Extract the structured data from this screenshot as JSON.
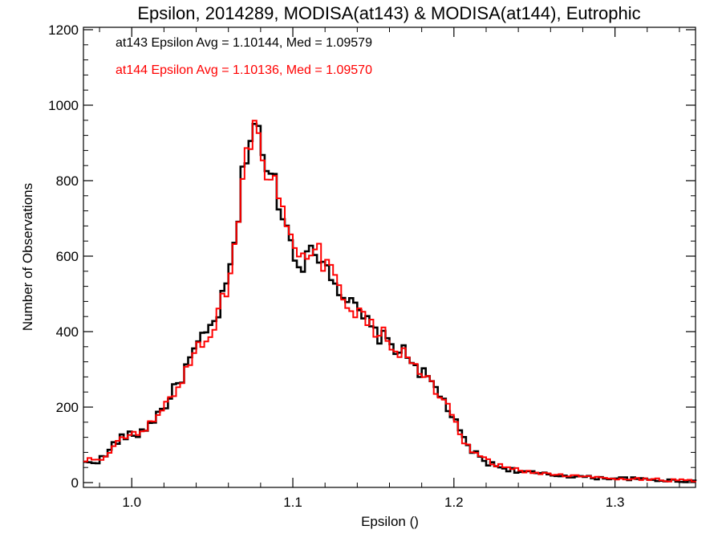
{
  "chart_data": {
    "type": "line",
    "title": "Epsilon, 2014289, MODISA(at143) & MODISA(at144), Eutrophic",
    "xlabel": "Epsilon ()",
    "ylabel": "Number of Observations",
    "xlim": [
      0.97,
      1.35
    ],
    "ylim": [
      0,
      1200
    ],
    "x_ticks": [
      1.0,
      1.1,
      1.2,
      1.3
    ],
    "x_tick_labels": [
      "1.0",
      "1.1",
      "1.2",
      "1.3"
    ],
    "y_ticks": [
      0,
      200,
      400,
      600,
      800,
      1000,
      1200
    ],
    "y_tick_labels": [
      "0",
      "200",
      "400",
      "600",
      "800",
      "1000",
      "1200"
    ],
    "grid": false,
    "step": true,
    "annotations": [
      {
        "text": "at143 Epsilon Avg = 1.10144, Med = 1.09579",
        "color": "#000000"
      },
      {
        "text": "at144 Epsilon Avg = 1.10136, Med = 1.09570",
        "color": "#ff0000"
      }
    ],
    "series": [
      {
        "color": "#000000",
        "x": [
          0.97,
          0.975,
          0.98,
          0.985,
          0.99,
          0.995,
          1.0,
          1.005,
          1.01,
          1.015,
          1.02,
          1.025,
          1.03,
          1.035,
          1.04,
          1.045,
          1.05,
          1.055,
          1.06,
          1.065,
          1.07,
          1.0725,
          1.075,
          1.0775,
          1.08,
          1.0825,
          1.085,
          1.0875,
          1.09,
          1.095,
          1.1,
          1.105,
          1.11,
          1.115,
          1.12,
          1.125,
          1.13,
          1.135,
          1.14,
          1.145,
          1.15,
          1.155,
          1.16,
          1.165,
          1.17,
          1.175,
          1.18,
          1.185,
          1.19,
          1.195,
          1.2,
          1.205,
          1.21,
          1.215,
          1.22,
          1.225,
          1.23,
          1.24,
          1.25,
          1.26,
          1.27,
          1.28,
          1.29,
          1.3,
          1.31,
          1.32,
          1.33,
          1.34,
          1.35
        ],
        "y": [
          50,
          55,
          60,
          75,
          110,
          120,
          125,
          130,
          150,
          175,
          200,
          235,
          270,
          315,
          355,
          385,
          415,
          465,
          540,
          650,
          860,
          890,
          940,
          975,
          920,
          790,
          820,
          830,
          770,
          695,
          620,
          580,
          600,
          615,
          580,
          550,
          505,
          480,
          450,
          430,
          400,
          385,
          370,
          355,
          340,
          320,
          290,
          270,
          240,
          210,
          165,
          120,
          90,
          70,
          55,
          45,
          40,
          30,
          25,
          20,
          18,
          15,
          12,
          12,
          10,
          8,
          6,
          5,
          4
        ]
      },
      {
        "color": "#ff0000",
        "x": [
          0.97,
          0.975,
          0.98,
          0.985,
          0.99,
          0.995,
          1.0,
          1.005,
          1.01,
          1.015,
          1.02,
          1.025,
          1.03,
          1.035,
          1.04,
          1.045,
          1.05,
          1.055,
          1.06,
          1.065,
          1.07,
          1.0725,
          1.075,
          1.0775,
          1.08,
          1.0825,
          1.085,
          1.0875,
          1.09,
          1.095,
          1.1,
          1.105,
          1.11,
          1.115,
          1.12,
          1.125,
          1.13,
          1.135,
          1.14,
          1.145,
          1.15,
          1.155,
          1.16,
          1.165,
          1.17,
          1.175,
          1.18,
          1.185,
          1.19,
          1.195,
          1.2,
          1.205,
          1.21,
          1.215,
          1.22,
          1.225,
          1.23,
          1.24,
          1.25,
          1.26,
          1.27,
          1.28,
          1.29,
          1.3,
          1.31,
          1.32,
          1.33,
          1.34,
          1.35
        ],
        "y": [
          55,
          60,
          65,
          70,
          100,
          115,
          130,
          125,
          145,
          170,
          195,
          230,
          265,
          310,
          350,
          380,
          410,
          460,
          535,
          660,
          850,
          880,
          930,
          965,
          910,
          780,
          810,
          815,
          760,
          690,
          615,
          585,
          610,
          620,
          575,
          545,
          500,
          475,
          455,
          425,
          405,
          395,
          380,
          350,
          335,
          315,
          285,
          265,
          235,
          205,
          160,
          115,
          85,
          70,
          58,
          48,
          42,
          32,
          27,
          22,
          19,
          16,
          13,
          12,
          10,
          9,
          7,
          5,
          4
        ]
      }
    ]
  }
}
